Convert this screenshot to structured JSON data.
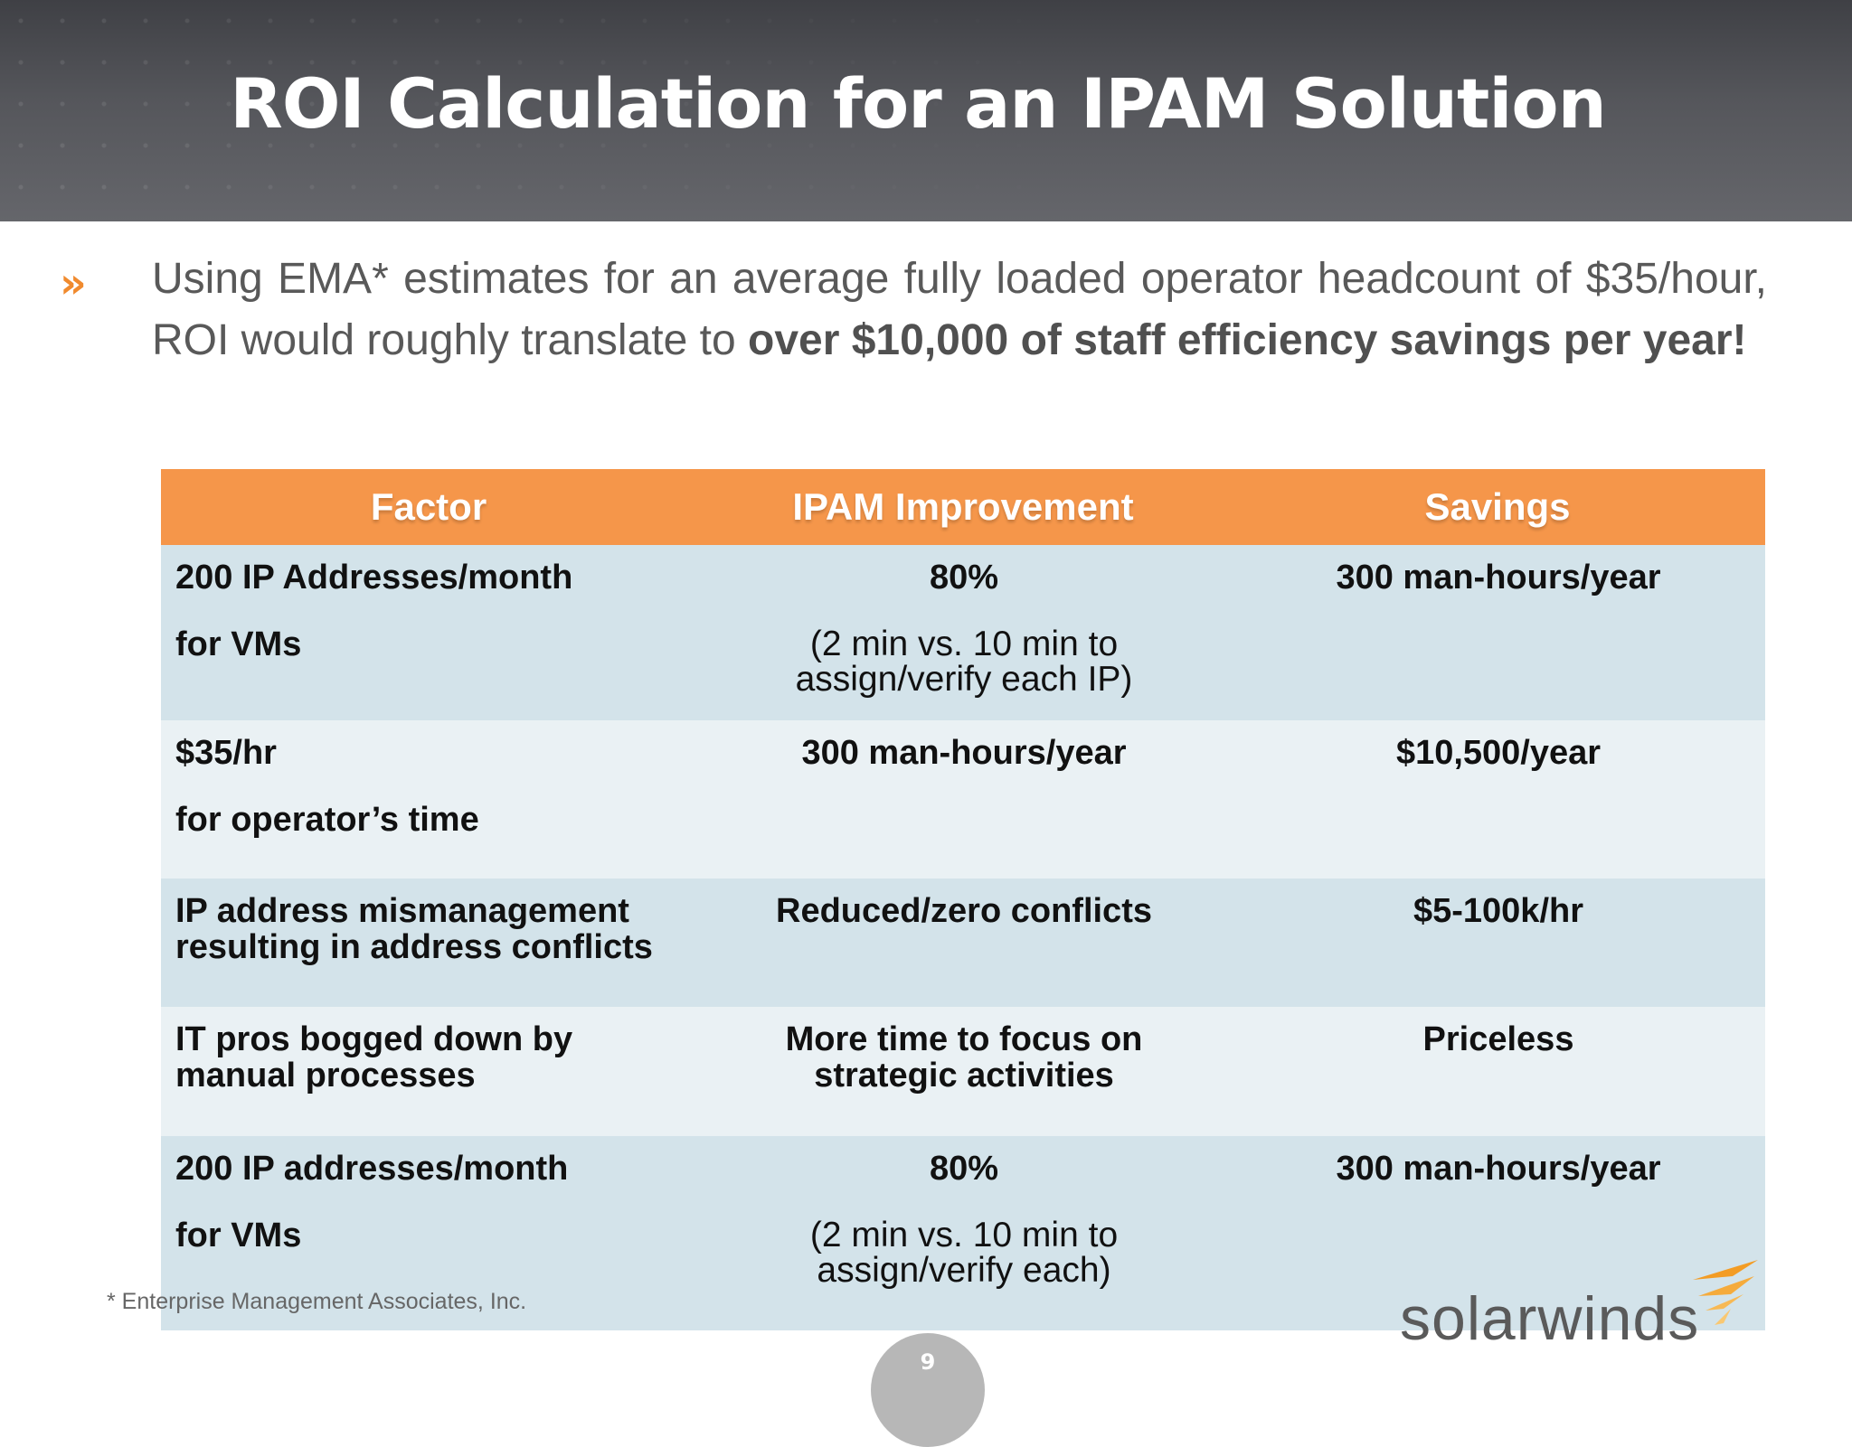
{
  "slide": {
    "title": "ROI Calculation for an IPAM Solution",
    "bullet_marker": "»",
    "bullet_text_regular": "Using EMA* estimates for an average fully loaded operator headcount of $35/hour, ROI would roughly translate to ",
    "bullet_text_bold": "over $10,000 of staff efficiency savings per year!",
    "footnote": "* Enterprise Management Associates, Inc.",
    "page_number": "9",
    "logo_text": "solarwinds"
  },
  "table": {
    "headers": [
      "Factor",
      "IPAM Improvement",
      "Savings"
    ],
    "rows": [
      {
        "factor_line1": "200 IP Addresses/month",
        "factor_line2": "for VMs",
        "improvement": "80%",
        "improvement_sub": "(2 min vs. 10 min to assign/verify each IP)",
        "savings": "300 man-hours/year"
      },
      {
        "factor_line1": "$35/hr",
        "factor_line2": "for operator’s time",
        "improvement": "300 man-hours/year",
        "savings": "$10,500/year"
      },
      {
        "factor": "IP address mismanagement resulting in address conflicts",
        "improvement": "Reduced/zero conflicts",
        "savings": "$5-100k/hr"
      },
      {
        "factor": "IT pros bogged down by manual processes",
        "improvement": "More time to focus on strategic activities",
        "savings": "Priceless"
      },
      {
        "factor_line1": "200 IP addresses/month",
        "factor_line2": "for VMs",
        "improvement": "80%",
        "improvement_sub": "(2 min vs. 10 min to assign/verify each)",
        "savings": "300 man-hours/year"
      }
    ]
  },
  "colors": {
    "header_band": "#55565b",
    "table_header": "#f5964a",
    "row_dark": "#d3e3ea",
    "row_light": "#eaf1f4",
    "bullet_accent": "#f08a2e",
    "logo_orange": "#f39c24"
  },
  "icons": {
    "logo_mark": "solarwinds-flame-icon"
  }
}
